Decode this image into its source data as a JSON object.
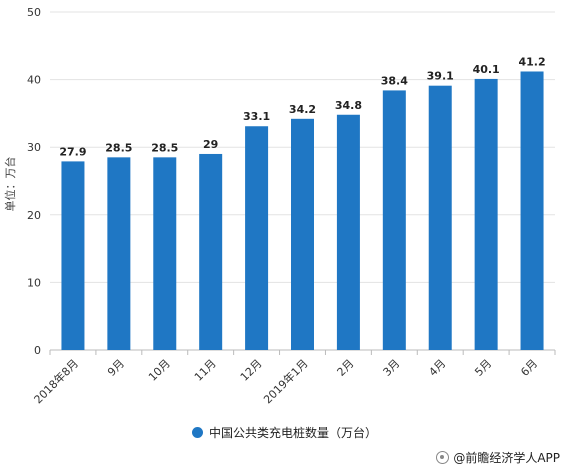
{
  "chart_data": {
    "type": "bar",
    "categories": [
      "2018年8月",
      "9月",
      "10月",
      "11月",
      "12月",
      "2019年1月",
      "2月",
      "3月",
      "4月",
      "5月",
      "6月"
    ],
    "values": [
      27.9,
      28.5,
      28.5,
      29,
      33.1,
      34.2,
      34.8,
      38.4,
      39.1,
      40.1,
      41.2
    ],
    "value_labels": [
      "27.9",
      "28.5",
      "28.5",
      "29",
      "33.1",
      "34.2",
      "34.8",
      "38.4",
      "39.1",
      "40.1",
      "41.2"
    ],
    "ylabel": "单位：万台",
    "ylim": [
      0,
      50
    ],
    "yticks": [
      0,
      10,
      20,
      30,
      40,
      50
    ],
    "grid": true,
    "legend_position": "bottom",
    "series_color": "#1f77c4",
    "series": [
      {
        "name": "中国公共类充电桩数量（万台）",
        "values": [
          27.9,
          28.5,
          28.5,
          29,
          33.1,
          34.2,
          34.8,
          38.4,
          39.1,
          40.1,
          41.2
        ]
      }
    ]
  },
  "legend": {
    "label": "中国公共类充电桩数量（万台）"
  },
  "credit": {
    "label": "@前瞻经济学人APP",
    "icon": "logo-icon"
  }
}
